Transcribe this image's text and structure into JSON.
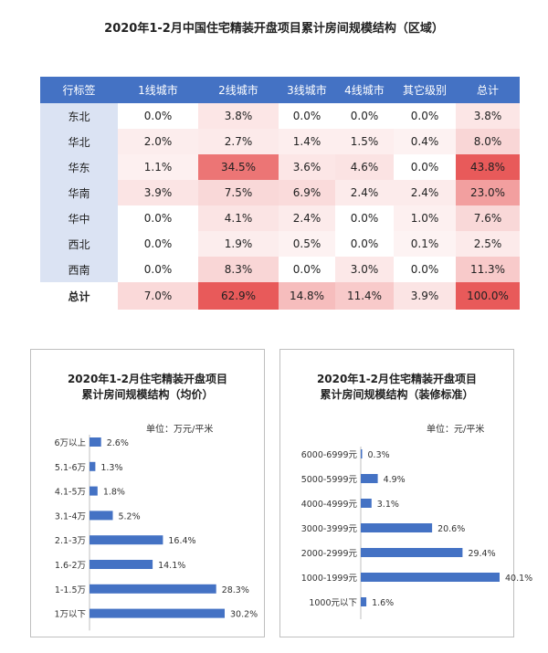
{
  "title": "2020年1-2月中国住宅精装开盘项目累计房间规模结构（区域）",
  "table": {
    "headers": [
      "行标签",
      "1线城市",
      "2线城市",
      "3线城市",
      "4线城市",
      "其它级别",
      "总计"
    ],
    "rows": [
      {
        "label": "东北",
        "cells": [
          "0.0%",
          "3.8%",
          "0.0%",
          "0.0%",
          "0.0%",
          "3.8%"
        ]
      },
      {
        "label": "华北",
        "cells": [
          "2.0%",
          "2.7%",
          "1.4%",
          "1.5%",
          "0.4%",
          "8.0%"
        ]
      },
      {
        "label": "华东",
        "cells": [
          "1.1%",
          "34.5%",
          "3.6%",
          "4.6%",
          "0.0%",
          "43.8%"
        ]
      },
      {
        "label": "华南",
        "cells": [
          "3.9%",
          "7.5%",
          "6.9%",
          "2.4%",
          "2.4%",
          "23.0%"
        ]
      },
      {
        "label": "华中",
        "cells": [
          "0.0%",
          "4.1%",
          "2.4%",
          "0.0%",
          "1.0%",
          "7.6%"
        ]
      },
      {
        "label": "西北",
        "cells": [
          "0.0%",
          "1.9%",
          "0.5%",
          "0.0%",
          "0.1%",
          "2.5%"
        ]
      },
      {
        "label": "西南",
        "cells": [
          "0.0%",
          "8.3%",
          "0.0%",
          "3.0%",
          "0.0%",
          "11.3%"
        ]
      }
    ],
    "total": {
      "label": "总计",
      "cells": [
        "7.0%",
        "62.9%",
        "14.8%",
        "11.4%",
        "3.9%",
        "100.0%"
      ]
    }
  },
  "colors": {
    "header": "#4472c4",
    "rowlab": "#dbe3f3",
    "bar": "#4472c4",
    "heat": "#e85a5a"
  },
  "left_card": {
    "title_line1": "2020年1-2月住宅精装开盘项目",
    "title_line2": "累计房间规模结构（均价）",
    "unit": "单位：万元/平米"
  },
  "right_card": {
    "title_line1": "2020年1-2月住宅精装开盘项目",
    "title_line2": "累计房间规模结构（装修标准）",
    "unit": "单位：元/平米"
  },
  "chart_data": [
    {
      "type": "bar",
      "orientation": "horizontal",
      "title": "2020年1-2月住宅精装开盘项目累计房间规模结构（均价）",
      "categories": [
        "6万以上",
        "5.1-6万",
        "4.1-5万",
        "3.1-4万",
        "2.1-3万",
        "1.6-2万",
        "1-1.5万",
        "1万以下"
      ],
      "values": [
        2.6,
        1.3,
        1.8,
        5.2,
        16.4,
        14.1,
        28.3,
        30.2
      ],
      "labels": [
        "2.6%",
        "1.3%",
        "1.8%",
        "5.2%",
        "16.4%",
        "14.1%",
        "28.3%",
        "30.2%"
      ]
    },
    {
      "type": "bar",
      "orientation": "horizontal",
      "title": "2020年1-2月住宅精装开盘项目累计房间规模结构（装修标准）",
      "categories": [
        "6000-6999元",
        "5000-5999元",
        "4000-4999元",
        "3000-3999元",
        "2000-2999元",
        "1000-1999元",
        "1000元以下"
      ],
      "values": [
        0.3,
        4.9,
        3.1,
        20.6,
        29.4,
        40.1,
        1.6
      ],
      "labels": [
        "0.3%",
        "4.9%",
        "3.1%",
        "20.6%",
        "29.4%",
        "40.1%",
        "1.6%"
      ]
    }
  ]
}
